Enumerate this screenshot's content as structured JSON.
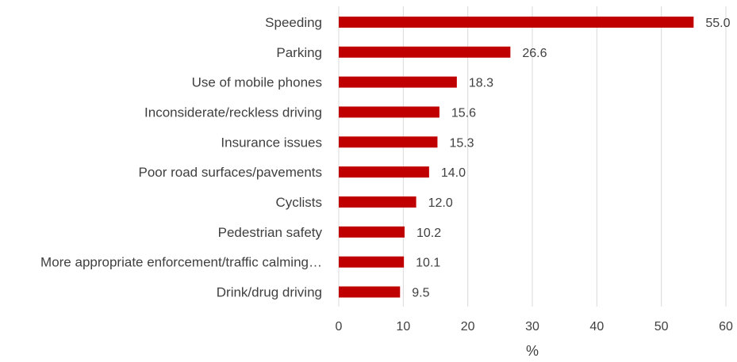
{
  "chart_data": {
    "type": "bar",
    "orientation": "horizontal",
    "categories": [
      "Speeding",
      "Parking",
      "Use of mobile phones",
      "Inconsiderate/reckless driving",
      "Insurance issues",
      "Poor road surfaces/pavements",
      "Cyclists",
      "Pedestrian safety",
      "More appropriate enforcement/traffic calming…",
      "Drink/drug driving"
    ],
    "values": [
      55.0,
      26.6,
      18.3,
      15.6,
      15.3,
      14.0,
      12.0,
      10.2,
      10.1,
      9.5
    ],
    "value_labels": [
      "55.0",
      "26.6",
      "18.3",
      "15.6",
      "15.3",
      "14.0",
      "12.0",
      "10.2",
      "10.1",
      "9.5"
    ],
    "xlabel": "%",
    "ylabel": "",
    "xlim": [
      0,
      60
    ],
    "xticks": [
      0,
      10,
      20,
      30,
      40,
      50,
      60
    ],
    "xtick_labels": [
      "0",
      "10",
      "20",
      "30",
      "40",
      "50",
      "60"
    ],
    "grid": "vertical",
    "legend": "none",
    "bar_color": "#c00000",
    "grid_color": "#d9d9d9",
    "text_color": "#404040"
  }
}
